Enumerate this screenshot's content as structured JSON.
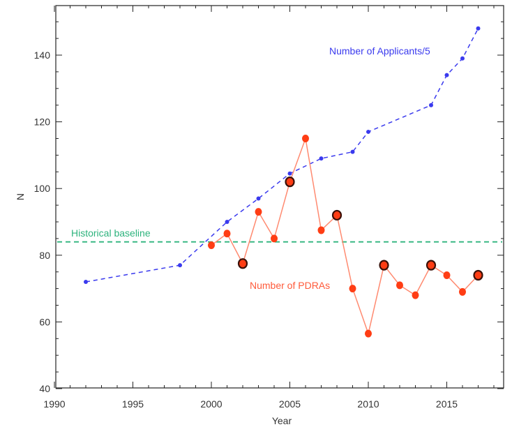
{
  "chart_data": {
    "type": "line",
    "title": "",
    "xlabel": "Year",
    "ylabel": "N",
    "xlim": [
      1990,
      2018
    ],
    "ylim": [
      40,
      150
    ],
    "xticks": [
      1990,
      1995,
      2000,
      2005,
      2010,
      2015
    ],
    "yticks": [
      40,
      60,
      80,
      100,
      120,
      140
    ],
    "grid": false,
    "series": [
      {
        "name": "Number of Applicants/5",
        "color": "#3a3aee",
        "style": "dashed",
        "marker": "dot",
        "x": [
          1992,
          1998,
          2001,
          2003,
          2005,
          2007,
          2009,
          2010,
          2014,
          2015,
          2016,
          2017
        ],
        "y": [
          72,
          77,
          90,
          97,
          104.5,
          109,
          111,
          117,
          125,
          134,
          139,
          148
        ]
      },
      {
        "name": "Number of PDRAs",
        "color": "#ff3d14",
        "line_color": "#ff8a70",
        "style": "solid",
        "marker": "circle",
        "highlight_edge": "#3a1008",
        "x": [
          2000,
          2001,
          2002,
          2003,
          2004,
          2005,
          2006,
          2007,
          2008,
          2009,
          2010,
          2011,
          2012,
          2013,
          2014,
          2015,
          2016,
          2017
        ],
        "y": [
          83,
          86.5,
          77.5,
          93,
          85,
          102,
          115,
          87.5,
          92,
          70,
          56.5,
          77,
          71,
          68,
          77,
          74,
          69,
          74
        ],
        "highlighted": [
          false,
          false,
          true,
          false,
          false,
          true,
          false,
          false,
          true,
          false,
          false,
          true,
          false,
          false,
          true,
          false,
          false,
          true
        ]
      }
    ],
    "reference_line": {
      "label": "Historical baseline",
      "y": 84,
      "color": "#2db37d",
      "style": "dashed"
    },
    "annotations": [
      {
        "text": "Number of Applicants/5",
        "color": "#3a3aee"
      },
      {
        "text": "Number of PDRAs",
        "color": "#ff5a3a"
      },
      {
        "text": "Historical baseline",
        "color": "#2db37d"
      }
    ]
  }
}
